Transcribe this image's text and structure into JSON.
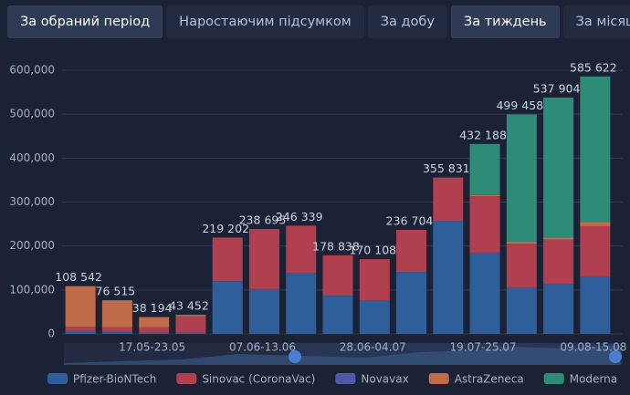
{
  "tabs": [
    "За обраний період",
    "Наростаючим підсумком",
    "За добу",
    "За тиждень",
    "За місяць"
  ],
  "chart_data": {
    "type": "bar",
    "stacked": true,
    "categories": [
      null,
      null,
      "17.05-23.05",
      null,
      null,
      "07.06-13.06",
      null,
      null,
      "28.06-04.07",
      null,
      null,
      "19.07-25.07",
      null,
      null,
      "09.08-15.08"
    ],
    "series": [
      {
        "name": "Pfizer-BioNTech",
        "color": "#2f5f9a",
        "values": [
          7000,
          5000,
          3000,
          3000,
          120000,
          102000,
          139000,
          87000,
          77000,
          141000,
          257000,
          185000,
          106000,
          114000,
          131000
        ]
      },
      {
        "name": "Sinovac (CoronaVac)",
        "color": "#b0404f",
        "values": [
          9000,
          10000,
          12000,
          37000,
          99202,
          136695,
          107339,
          91838,
          93108,
          95704,
          98831,
          128000,
          99000,
          101000,
          114000
        ]
      },
      {
        "name": "Novavax",
        "color": "#4e5aa8",
        "values": [
          0,
          0,
          0,
          0,
          0,
          0,
          0,
          0,
          0,
          0,
          0,
          0,
          0,
          0,
          0
        ]
      },
      {
        "name": "AstraZeneca",
        "color": "#c06b4a",
        "values": [
          92542,
          61515,
          23194,
          3452,
          0,
          0,
          0,
          0,
          0,
          0,
          0,
          3000,
          5000,
          4000,
          10000
        ]
      },
      {
        "name": "Moderna",
        "color": "#2e8b78",
        "values": [
          0,
          0,
          0,
          0,
          0,
          0,
          0,
          0,
          0,
          0,
          0,
          116188,
          289458,
          318904,
          330622
        ]
      }
    ],
    "totals": {
      "values": [
        108542,
        76515,
        38194,
        43452,
        219202,
        238695,
        246339,
        178838,
        170108,
        236704,
        355831,
        432188,
        499458,
        537904,
        585622
      ],
      "value_labels": [
        "108 542",
        "76 515",
        "38 194",
        "43 452",
        "219 202",
        "238 695",
        "246 339",
        "178 838",
        "170 108",
        "236 704",
        "355 831",
        "432 188",
        "499 458",
        "537 904",
        "585 622"
      ]
    },
    "ylim": [
      0,
      600000
    ],
    "yticks": [
      0,
      {
        "value": 100000,
        "label": "100,000"
      },
      {
        "value": 200000,
        "label": "200,000"
      },
      {
        "value": 300000,
        "label": "300,000"
      },
      {
        "value": 400000,
        "label": "400,000"
      },
      {
        "value": 500000,
        "label": "500,000"
      },
      {
        "value": 600000,
        "label": "600,000"
      }
    ],
    "grid": true
  }
}
